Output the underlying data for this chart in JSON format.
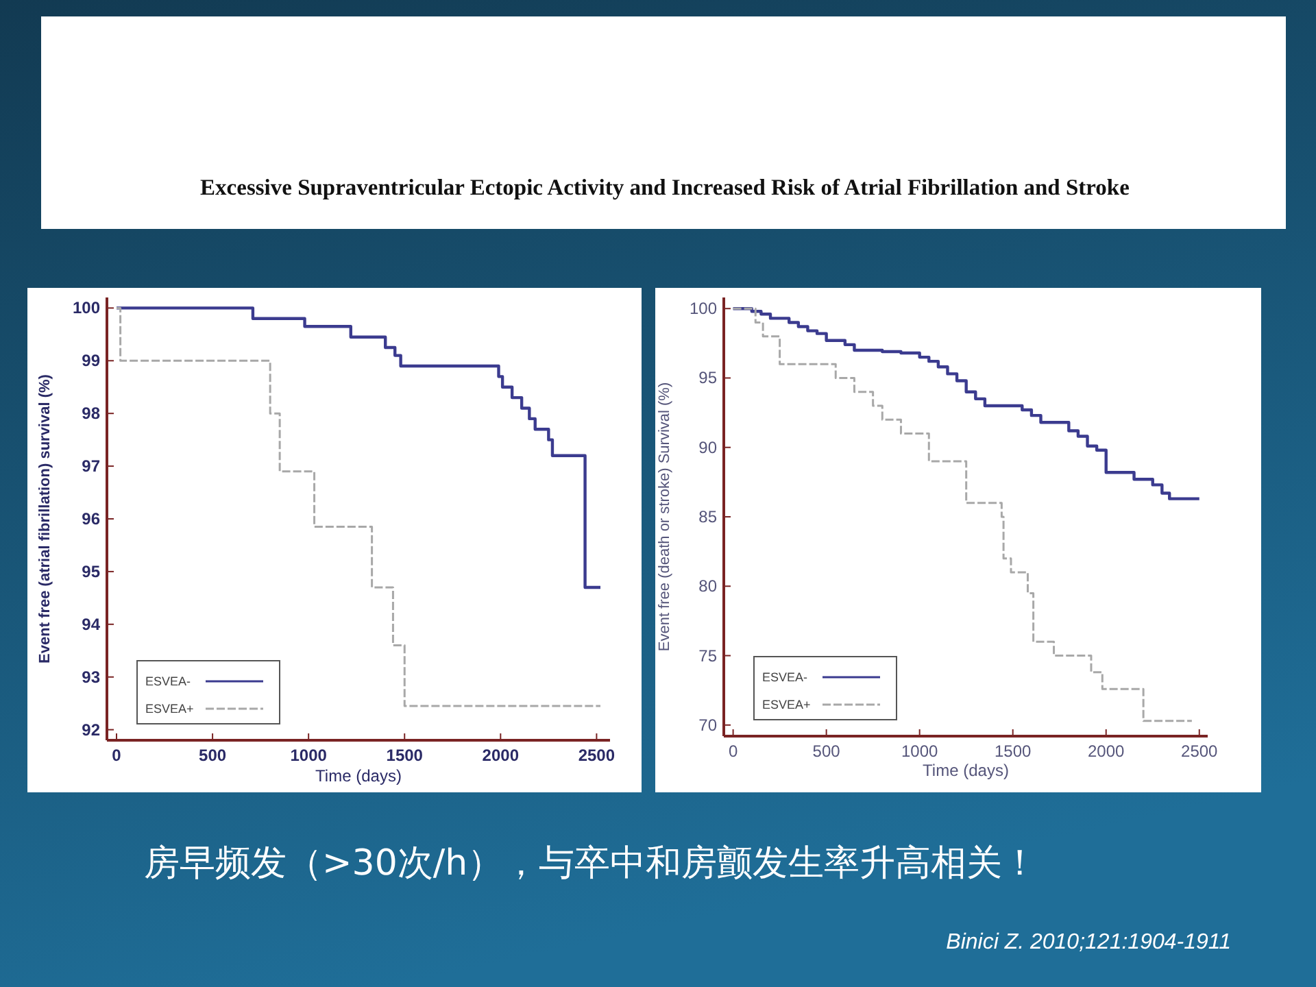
{
  "chart_data": [
    {
      "type": "step",
      "xlabel": "Time (days)",
      "ylabel": "Event free (atrial fibrillation) survival (%)",
      "xlim": [
        -50,
        2570
      ],
      "ylim": [
        91.8,
        100.2
      ],
      "xticks": [
        0,
        500,
        1000,
        1500,
        2000,
        2500
      ],
      "yticks": [
        92,
        93,
        94,
        95,
        96,
        97,
        98,
        99,
        100
      ],
      "legend": "bottom left",
      "grid": false,
      "marker": "none",
      "series": [
        {
          "name": "ESVEA-",
          "color": "#3b3b8f",
          "line_style": "solid",
          "x": [
            0,
            710,
            980,
            1220,
            1400,
            1450,
            1480,
            1990,
            2010,
            2060,
            2110,
            2150,
            2180,
            2250,
            2270,
            2440,
            2520
          ],
          "values": [
            100,
            99.8,
            99.65,
            99.45,
            99.25,
            99.1,
            98.9,
            98.7,
            98.5,
            98.3,
            98.1,
            97.9,
            97.7,
            97.5,
            97.2,
            94.7,
            94.7
          ]
        },
        {
          "name": "ESVEA+",
          "color": "#a8a8a8",
          "line_style": "dashed",
          "x": [
            0,
            20,
            800,
            850,
            1030,
            1330,
            1440,
            1500,
            2520
          ],
          "values": [
            100,
            99,
            98,
            96.9,
            95.85,
            94.7,
            93.6,
            92.45,
            92.45
          ]
        }
      ]
    },
    {
      "type": "step",
      "xlabel": "Time (days)",
      "ylabel": "Event free (death or stroke) Survival (%)",
      "xlim": [
        -50,
        2545
      ],
      "ylim": [
        69.2,
        100.8
      ],
      "xticks": [
        0,
        500,
        1000,
        1500,
        2000,
        2500
      ],
      "yticks": [
        70,
        75,
        80,
        85,
        90,
        95,
        100
      ],
      "legend": "bottom left",
      "grid": false,
      "marker": "none",
      "series": [
        {
          "name": "ESVEA-",
          "color": "#3b3b8f",
          "line_style": "solid",
          "x": [
            0,
            100,
            150,
            200,
            300,
            350,
            400,
            450,
            500,
            600,
            650,
            800,
            900,
            1000,
            1050,
            1100,
            1150,
            1200,
            1250,
            1300,
            1350,
            1500,
            1550,
            1600,
            1650,
            1750,
            1800,
            1850,
            1900,
            1950,
            2000,
            2100,
            2150,
            2250,
            2300,
            2340,
            2500
          ],
          "values": [
            100,
            99.8,
            99.6,
            99.3,
            99.0,
            98.7,
            98.4,
            98.2,
            97.7,
            97.4,
            97.0,
            96.9,
            96.8,
            96.5,
            96.2,
            95.8,
            95.3,
            94.8,
            94.0,
            93.5,
            93.0,
            93.0,
            92.7,
            92.3,
            91.8,
            91.8,
            91.2,
            90.8,
            90.1,
            89.8,
            88.2,
            88.2,
            87.7,
            87.3,
            86.7,
            86.3,
            86.3
          ]
        },
        {
          "name": "ESVEA+",
          "color": "#a8a8a8",
          "line_style": "dashed",
          "x": [
            0,
            120,
            160,
            250,
            550,
            650,
            750,
            800,
            900,
            1050,
            1250,
            1440,
            1450,
            1490,
            1580,
            1610,
            1720,
            1920,
            1980,
            2200,
            2460
          ],
          "values": [
            100,
            99,
            98,
            96,
            95,
            94,
            93,
            92,
            91,
            89,
            86,
            85,
            82,
            81,
            79.5,
            76,
            75,
            73.8,
            72.6,
            70.3,
            70.3
          ]
        }
      ]
    },
    {
      "type": "other",
      "title": "Excessive Supraventricular Ectopic Activity and Increased Risk of Atrial Fibrillation and Stroke",
      "annotations": [
        "房早频发（>30次/h），与卒中和房颤发生率升高相关！",
        "Binici Z. 2010;121:1904-1911"
      ]
    }
  ]
}
